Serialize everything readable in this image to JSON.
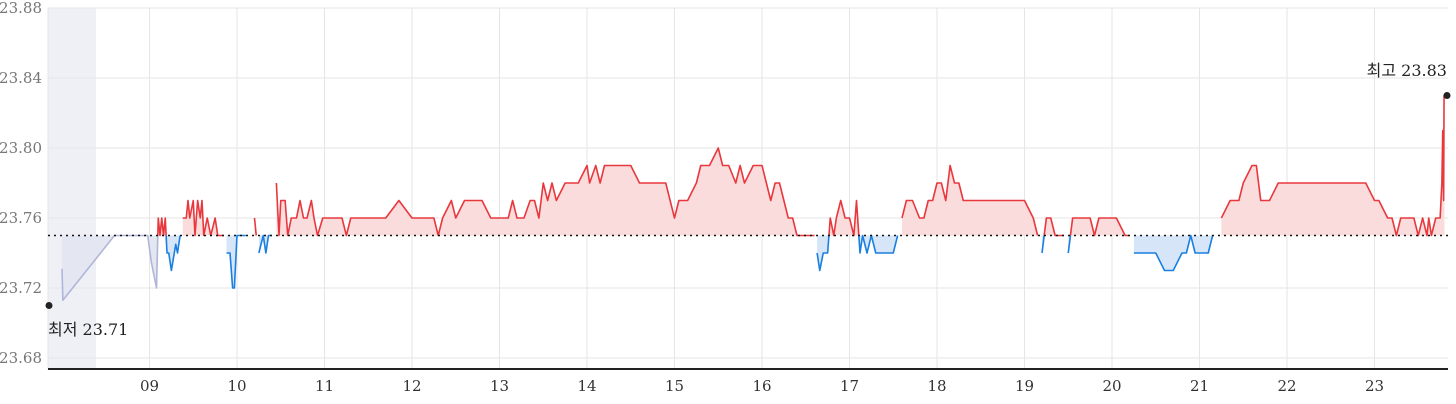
{
  "chart_data": {
    "type": "line",
    "baseline": 23.75,
    "ylim": [
      23.68,
      23.88
    ],
    "yticks": [
      "23.68",
      "23.72",
      "23.76",
      "23.80",
      "23.84",
      "23.88"
    ],
    "categories": [
      "09",
      "10",
      "11",
      "12",
      "13",
      "14",
      "15",
      "16",
      "17",
      "18",
      "19",
      "20",
      "21",
      "22",
      "23"
    ],
    "colors": {
      "up_line": "#e8383d",
      "up_fill": "#fbdcdc",
      "down_line": "#1a7fe0",
      "down_fill": "#d6e6f8",
      "grid": "#e6e6e6",
      "axis": "#222222",
      "marker": "#222222",
      "shade": "#eef0f6",
      "prev": "#b0b6d8"
    },
    "low_label": "최저 23.71",
    "high_label": "최고 23.83",
    "series": [
      {
        "values": [
          [
            8.0,
            23.731
          ],
          [
            8.01,
            23.713
          ],
          [
            8.6,
            23.75
          ],
          [
            8.98,
            23.75
          ],
          [
            9.02,
            23.735
          ],
          [
            9.08,
            23.72
          ],
          [
            9.1,
            23.76
          ],
          [
            9.12,
            23.75
          ],
          [
            9.14,
            23.76
          ],
          [
            9.16,
            23.75
          ],
          [
            9.18,
            23.76
          ],
          [
            9.2,
            23.74
          ],
          [
            9.22,
            23.74
          ],
          [
            9.25,
            23.73
          ],
          [
            9.3,
            23.745
          ],
          [
            9.32,
            23.74
          ],
          [
            9.35,
            23.75
          ],
          [
            9.38,
            23.76
          ],
          [
            9.42,
            23.76
          ],
          [
            9.44,
            23.77
          ],
          [
            9.46,
            23.76
          ],
          [
            9.5,
            23.77
          ],
          [
            9.52,
            23.75
          ],
          [
            9.55,
            23.77
          ],
          [
            9.58,
            23.76
          ],
          [
            9.6,
            23.77
          ],
          [
            9.62,
            23.75
          ],
          [
            9.66,
            23.76
          ],
          [
            9.7,
            23.75
          ],
          [
            9.75,
            23.76
          ],
          [
            9.78,
            23.75
          ],
          [
            9.85,
            23.75
          ],
          [
            9.88,
            23.74
          ],
          [
            9.92,
            23.74
          ],
          [
            9.95,
            23.72
          ],
          [
            9.97,
            23.72
          ],
          [
            10.0,
            23.75
          ],
          [
            10.1,
            23.75
          ],
          [
            10.2,
            23.76
          ],
          [
            10.22,
            23.75
          ],
          [
            10.25,
            23.74
          ],
          [
            10.3,
            23.75
          ],
          [
            10.33,
            23.74
          ],
          [
            10.36,
            23.75
          ],
          [
            10.4,
            23.75
          ],
          [
            10.45,
            23.78
          ],
          [
            10.48,
            23.75
          ],
          [
            10.5,
            23.77
          ],
          [
            10.55,
            23.77
          ],
          [
            10.58,
            23.75
          ],
          [
            10.62,
            23.76
          ],
          [
            10.68,
            23.76
          ],
          [
            10.72,
            23.77
          ],
          [
            10.76,
            23.76
          ],
          [
            10.8,
            23.76
          ],
          [
            10.85,
            23.77
          ],
          [
            10.88,
            23.76
          ],
          [
            10.92,
            23.75
          ],
          [
            10.98,
            23.76
          ],
          [
            11.02,
            23.76
          ],
          [
            11.1,
            23.76
          ],
          [
            11.2,
            23.76
          ],
          [
            11.25,
            23.75
          ],
          [
            11.3,
            23.76
          ],
          [
            11.5,
            23.76
          ],
          [
            11.7,
            23.76
          ],
          [
            11.85,
            23.77
          ],
          [
            12.0,
            23.76
          ],
          [
            12.15,
            23.76
          ],
          [
            12.25,
            23.76
          ],
          [
            12.3,
            23.75
          ],
          [
            12.35,
            23.76
          ],
          [
            12.45,
            23.77
          ],
          [
            12.5,
            23.76
          ],
          [
            12.6,
            23.77
          ],
          [
            12.8,
            23.77
          ],
          [
            12.9,
            23.76
          ],
          [
            13.0,
            23.76
          ],
          [
            13.1,
            23.76
          ],
          [
            13.15,
            23.77
          ],
          [
            13.2,
            23.76
          ],
          [
            13.28,
            23.76
          ],
          [
            13.35,
            23.77
          ],
          [
            13.4,
            23.77
          ],
          [
            13.45,
            23.76
          ],
          [
            13.5,
            23.78
          ],
          [
            13.55,
            23.77
          ],
          [
            13.6,
            23.78
          ],
          [
            13.65,
            23.77
          ],
          [
            13.75,
            23.78
          ],
          [
            13.9,
            23.78
          ],
          [
            14.0,
            23.79
          ],
          [
            14.03,
            23.78
          ],
          [
            14.1,
            23.79
          ],
          [
            14.15,
            23.78
          ],
          [
            14.2,
            23.79
          ],
          [
            14.3,
            23.79
          ],
          [
            14.5,
            23.79
          ],
          [
            14.6,
            23.78
          ],
          [
            14.8,
            23.78
          ],
          [
            14.9,
            23.78
          ],
          [
            15.0,
            23.76
          ],
          [
            15.05,
            23.77
          ],
          [
            15.15,
            23.77
          ],
          [
            15.25,
            23.78
          ],
          [
            15.3,
            23.79
          ],
          [
            15.4,
            23.79
          ],
          [
            15.5,
            23.8
          ],
          [
            15.55,
            23.79
          ],
          [
            15.62,
            23.79
          ],
          [
            15.7,
            23.78
          ],
          [
            15.75,
            23.79
          ],
          [
            15.8,
            23.78
          ],
          [
            15.9,
            23.79
          ],
          [
            16.0,
            23.79
          ],
          [
            16.05,
            23.78
          ],
          [
            16.1,
            23.77
          ],
          [
            16.15,
            23.78
          ],
          [
            16.2,
            23.78
          ],
          [
            16.25,
            23.77
          ],
          [
            16.3,
            23.76
          ],
          [
            16.35,
            23.76
          ],
          [
            16.4,
            23.75
          ],
          [
            16.5,
            23.75
          ],
          [
            16.6,
            23.75
          ],
          [
            16.63,
            23.74
          ],
          [
            16.66,
            23.73
          ],
          [
            16.7,
            23.74
          ],
          [
            16.75,
            23.74
          ],
          [
            16.78,
            23.76
          ],
          [
            16.82,
            23.75
          ],
          [
            16.85,
            23.76
          ],
          [
            16.9,
            23.77
          ],
          [
            16.95,
            23.76
          ],
          [
            17.0,
            23.76
          ],
          [
            17.05,
            23.75
          ],
          [
            17.08,
            23.77
          ],
          [
            17.12,
            23.74
          ],
          [
            17.15,
            23.75
          ],
          [
            17.2,
            23.74
          ],
          [
            17.25,
            23.75
          ],
          [
            17.3,
            23.74
          ],
          [
            17.38,
            23.74
          ],
          [
            17.45,
            23.74
          ],
          [
            17.5,
            23.74
          ],
          [
            17.55,
            23.75
          ],
          [
            17.6,
            23.76
          ],
          [
            17.65,
            23.77
          ],
          [
            17.72,
            23.77
          ],
          [
            17.8,
            23.76
          ],
          [
            17.85,
            23.76
          ],
          [
            17.9,
            23.77
          ],
          [
            17.95,
            23.77
          ],
          [
            18.0,
            23.78
          ],
          [
            18.05,
            23.78
          ],
          [
            18.1,
            23.77
          ],
          [
            18.15,
            23.79
          ],
          [
            18.2,
            23.78
          ],
          [
            18.25,
            23.78
          ],
          [
            18.3,
            23.77
          ],
          [
            18.4,
            23.77
          ],
          [
            18.6,
            23.77
          ],
          [
            18.8,
            23.77
          ],
          [
            19.0,
            23.77
          ],
          [
            19.1,
            23.76
          ],
          [
            19.15,
            23.75
          ],
          [
            19.2,
            23.74
          ],
          [
            19.25,
            23.76
          ],
          [
            19.3,
            23.76
          ],
          [
            19.35,
            23.75
          ],
          [
            19.45,
            23.75
          ],
          [
            19.5,
            23.74
          ],
          [
            19.55,
            23.76
          ],
          [
            19.65,
            23.76
          ],
          [
            19.75,
            23.76
          ],
          [
            19.8,
            23.75
          ],
          [
            19.85,
            23.76
          ],
          [
            20.0,
            23.76
          ],
          [
            20.05,
            23.76
          ],
          [
            20.15,
            23.75
          ],
          [
            20.2,
            23.75
          ],
          [
            20.25,
            23.74
          ],
          [
            20.35,
            23.74
          ],
          [
            20.5,
            23.74
          ],
          [
            20.6,
            23.73
          ],
          [
            20.7,
            23.73
          ],
          [
            20.8,
            23.74
          ],
          [
            20.85,
            23.74
          ],
          [
            20.9,
            23.75
          ],
          [
            20.95,
            23.74
          ],
          [
            21.0,
            23.74
          ],
          [
            21.1,
            23.74
          ],
          [
            21.15,
            23.75
          ],
          [
            21.25,
            23.76
          ],
          [
            21.35,
            23.77
          ],
          [
            21.45,
            23.77
          ],
          [
            21.5,
            23.78
          ],
          [
            21.6,
            23.79
          ],
          [
            21.65,
            23.79
          ],
          [
            21.7,
            23.77
          ],
          [
            21.8,
            23.77
          ],
          [
            21.9,
            23.78
          ],
          [
            22.0,
            23.78
          ],
          [
            22.2,
            23.78
          ],
          [
            22.5,
            23.78
          ],
          [
            22.9,
            23.78
          ],
          [
            23.0,
            23.77
          ],
          [
            23.05,
            23.77
          ],
          [
            23.15,
            23.76
          ],
          [
            23.2,
            23.76
          ],
          [
            23.25,
            23.75
          ],
          [
            23.3,
            23.76
          ],
          [
            23.45,
            23.76
          ],
          [
            23.5,
            23.75
          ],
          [
            23.55,
            23.76
          ],
          [
            23.6,
            23.75
          ],
          [
            23.62,
            23.76
          ],
          [
            23.65,
            23.75
          ],
          [
            23.7,
            23.76
          ],
          [
            23.75,
            23.76
          ],
          [
            23.77,
            23.78
          ],
          [
            23.78,
            23.81
          ],
          [
            23.79,
            23.77
          ],
          [
            23.795,
            23.83
          ],
          [
            23.8,
            23.83
          ]
        ]
      }
    ]
  }
}
